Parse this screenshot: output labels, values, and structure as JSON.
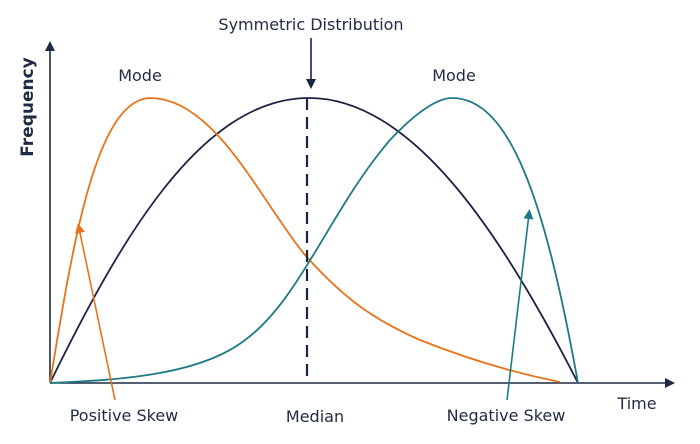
{
  "labels": {
    "title": "Symmetric Distribution",
    "mode_left": "Mode",
    "mode_right": "Mode",
    "positive_skew": "Positive Skew",
    "median": "Median",
    "negative_skew": "Negative Skew",
    "x_axis": "Time",
    "y_axis": "Frequency"
  },
  "colors": {
    "axis": "#1f2a44",
    "symmetric": "#1b2345",
    "positive_skew": "#e8731a",
    "negative_skew": "#1e7a85",
    "text": "#1f2a44"
  }
}
